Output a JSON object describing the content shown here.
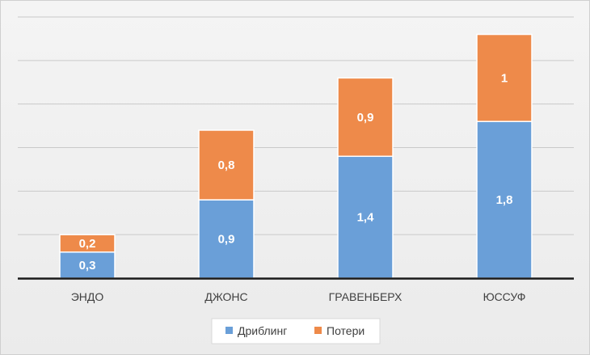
{
  "chart_data": {
    "type": "bar",
    "stacked": true,
    "categories": [
      "ЭНДО",
      "ДЖОНС",
      "ГРАВЕНБЕРХ",
      "ЮССУФ"
    ],
    "series": [
      {
        "name": "Дриблинг",
        "values": [
          0.3,
          0.9,
          1.4,
          1.8
        ],
        "labels": [
          "0,3",
          "0,9",
          "1,4",
          "1,8"
        ],
        "color": "#6a9fd8"
      },
      {
        "name": "Потери",
        "values": [
          0.2,
          0.8,
          0.9,
          1.0
        ],
        "labels": [
          "0,2",
          "0,8",
          "0,9",
          "1"
        ],
        "color": "#ee8a4a"
      }
    ],
    "ylim": [
      0,
      3
    ],
    "grid": true,
    "legend_position": "bottom"
  }
}
